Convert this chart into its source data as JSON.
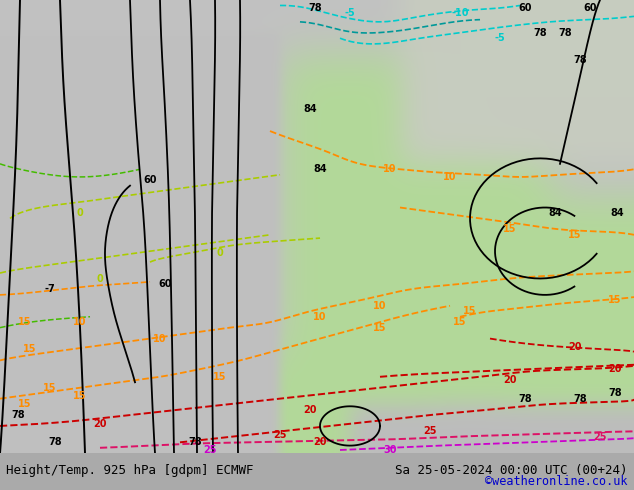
{
  "title_left": "Height/Temp. 925 hPa [gdpm] ECMWF",
  "title_right": "Sa 25-05-2024 00:00 UTC (00+24)",
  "credit": "©weatheronline.co.uk",
  "figsize": [
    6.34,
    4.9
  ],
  "dpi": 100,
  "bottom_text_color": "#000000",
  "credit_color": "#0000cc",
  "font_size_main": 9.0,
  "font_size_credit": 8.5,
  "map_gray": "#c8c8c8",
  "warm_green": "#b8dba0",
  "bottom_white": "#ffffff"
}
